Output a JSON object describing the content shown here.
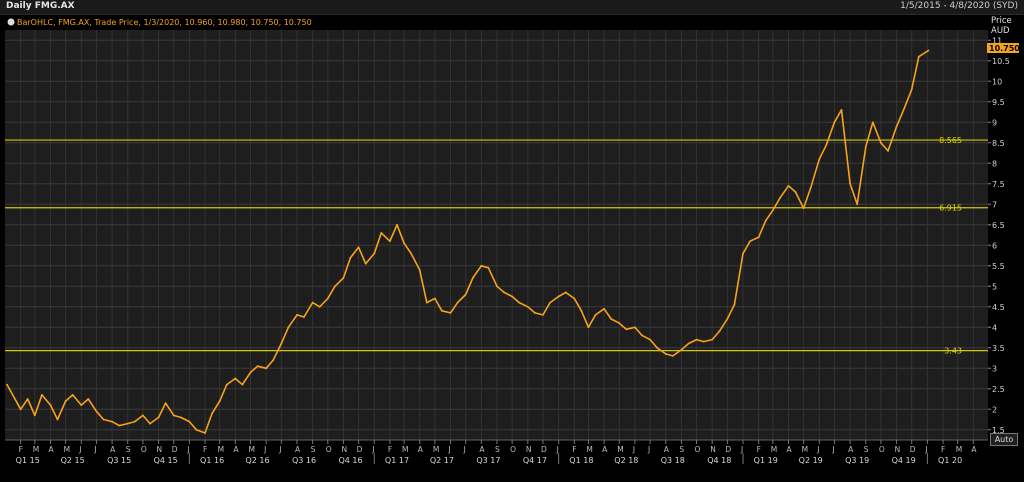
{
  "header": {
    "title": "Daily FMG.AX",
    "date_range": "1/5/2015 - 4/8/2020 (SYD)"
  },
  "legend": {
    "text": "BarOHLC, FMG.AX, Trade Price, 1/3/2020, 10.960, 10.980, 10.750, 10.750"
  },
  "auto_button": "Auto",
  "chart_data": {
    "type": "line",
    "y_axis_title": [
      "Price",
      "AUD"
    ],
    "ylim": [
      1.25,
      11.25
    ],
    "yticks": [
      1.5,
      2,
      2.5,
      3,
      3.5,
      4,
      4.5,
      5,
      5.5,
      6,
      6.5,
      7,
      7.5,
      8,
      8.5,
      9,
      9.5,
      10,
      10.5,
      11
    ],
    "ytick_labels": [
      "1.5",
      "2",
      "2.5",
      "3",
      "3.5",
      "4",
      "4.5",
      "5",
      "5.5",
      "6",
      "6.5",
      "7",
      "7.5",
      "8",
      "8.5",
      "9",
      "9.5",
      "10",
      "10.5",
      "11"
    ],
    "last_price": "10.750",
    "month_labels": [
      "F",
      "M",
      "A",
      "M",
      "J",
      "J",
      "A",
      "S",
      "O",
      "N",
      "D",
      "J",
      "F",
      "M",
      "A",
      "M",
      "J",
      "J",
      "A",
      "S",
      "O",
      "N",
      "D",
      "J",
      "F",
      "M",
      "A",
      "M",
      "J",
      "J",
      "A",
      "S",
      "O",
      "N",
      "D",
      "J",
      "F",
      "M",
      "A",
      "M",
      "J",
      "J",
      "A",
      "S",
      "O",
      "N",
      "D",
      "J",
      "F",
      "M",
      "A",
      "M",
      "J",
      "J",
      "A",
      "S",
      "O",
      "N",
      "D",
      "J",
      "F",
      "M",
      "A"
    ],
    "quarter_labels": [
      "Q1 15",
      "Q2 15",
      "Q3 15",
      "Q4 15",
      "Q1 16",
      "Q2 16",
      "Q3 16",
      "Q4 16",
      "Q1 17",
      "Q2 17",
      "Q3 17",
      "Q4 17",
      "Q1 18",
      "Q2 18",
      "Q3 18",
      "Q4 18",
      "Q1 19",
      "Q2 19",
      "Q3 19",
      "Q4 19",
      "Q1 20"
    ],
    "horizontal_lines": [
      {
        "value": 8.565,
        "label": "8.565"
      },
      {
        "value": 6.915,
        "label": "6.915"
      },
      {
        "value": 3.43,
        "label": "3.43"
      }
    ],
    "series": [
      {
        "color": "#f7a21b",
        "x": [
          "2015-01-05",
          "2015-02-01",
          "2015-02-15",
          "2015-03-01",
          "2015-03-15",
          "2015-04-01",
          "2015-04-15",
          "2015-05-01",
          "2015-05-15",
          "2015-06-01",
          "2015-06-15",
          "2015-07-01",
          "2015-07-15",
          "2015-08-01",
          "2015-08-15",
          "2015-09-01",
          "2015-09-15",
          "2015-10-01",
          "2015-10-15",
          "2015-11-01",
          "2015-11-15",
          "2015-12-01",
          "2015-12-15",
          "2016-01-01",
          "2016-01-15",
          "2016-02-01",
          "2016-02-15",
          "2016-03-01",
          "2016-03-15",
          "2016-04-01",
          "2016-04-15",
          "2016-05-01",
          "2016-05-15",
          "2016-06-01",
          "2016-06-15",
          "2016-07-01",
          "2016-07-15",
          "2016-08-01",
          "2016-08-15",
          "2016-09-01",
          "2016-09-15",
          "2016-10-01",
          "2016-10-15",
          "2016-11-01",
          "2016-11-15",
          "2016-12-01",
          "2016-12-15",
          "2017-01-01",
          "2017-01-15",
          "2017-02-01",
          "2017-02-15",
          "2017-03-01",
          "2017-03-15",
          "2017-04-01",
          "2017-04-15",
          "2017-05-01",
          "2017-05-15",
          "2017-06-01",
          "2017-06-15",
          "2017-07-01",
          "2017-07-15",
          "2017-08-01",
          "2017-08-15",
          "2017-09-01",
          "2017-09-15",
          "2017-10-01",
          "2017-10-15",
          "2017-11-01",
          "2017-11-15",
          "2017-12-01",
          "2017-12-15",
          "2018-01-01",
          "2018-01-15",
          "2018-02-01",
          "2018-02-15",
          "2018-03-01",
          "2018-03-15",
          "2018-04-01",
          "2018-04-15",
          "2018-05-01",
          "2018-05-15",
          "2018-06-01",
          "2018-06-15",
          "2018-07-01",
          "2018-07-15",
          "2018-08-01",
          "2018-08-15",
          "2018-09-01",
          "2018-09-15",
          "2018-10-01",
          "2018-10-15",
          "2018-11-01",
          "2018-11-15",
          "2018-12-01",
          "2018-12-15",
          "2019-01-01",
          "2019-01-15",
          "2019-02-01",
          "2019-02-15",
          "2019-03-01",
          "2019-03-15",
          "2019-04-01",
          "2019-04-15",
          "2019-05-01",
          "2019-05-15",
          "2019-06-01",
          "2019-06-15",
          "2019-07-01",
          "2019-07-15",
          "2019-08-01",
          "2019-08-15",
          "2019-09-01",
          "2019-09-15",
          "2019-10-01",
          "2019-10-15",
          "2019-11-01",
          "2019-11-15",
          "2019-12-01",
          "2019-12-15",
          "2020-01-03"
        ],
        "y": [
          2.6,
          2.0,
          2.25,
          1.85,
          2.35,
          2.1,
          1.75,
          2.2,
          2.35,
          2.1,
          2.25,
          1.95,
          1.75,
          1.7,
          1.6,
          1.65,
          1.7,
          1.85,
          1.65,
          1.8,
          2.15,
          1.85,
          1.8,
          1.7,
          1.5,
          1.42,
          1.9,
          2.2,
          2.6,
          2.75,
          2.6,
          2.9,
          3.05,
          3.0,
          3.2,
          3.6,
          4.0,
          4.3,
          4.25,
          4.6,
          4.5,
          4.7,
          5.0,
          5.2,
          5.7,
          5.95,
          5.55,
          5.8,
          6.3,
          6.1,
          6.5,
          6.05,
          5.8,
          5.4,
          4.6,
          4.7,
          4.4,
          4.35,
          4.6,
          4.8,
          5.2,
          5.5,
          5.45,
          5.0,
          4.85,
          4.75,
          4.6,
          4.5,
          4.35,
          4.3,
          4.6,
          4.75,
          4.85,
          4.7,
          4.4,
          4.0,
          4.3,
          4.45,
          4.2,
          4.1,
          3.95,
          4.0,
          3.8,
          3.7,
          3.5,
          3.35,
          3.3,
          3.45,
          3.6,
          3.7,
          3.65,
          3.7,
          3.9,
          4.2,
          4.55,
          5.8,
          6.1,
          6.2,
          6.6,
          6.85,
          7.15,
          7.45,
          7.3,
          6.9,
          7.4,
          8.1,
          8.45,
          9.0,
          9.3,
          7.5,
          7.0,
          8.4,
          9.0,
          8.5,
          8.3,
          8.9,
          9.3,
          9.8,
          10.6,
          10.75
        ]
      }
    ]
  }
}
